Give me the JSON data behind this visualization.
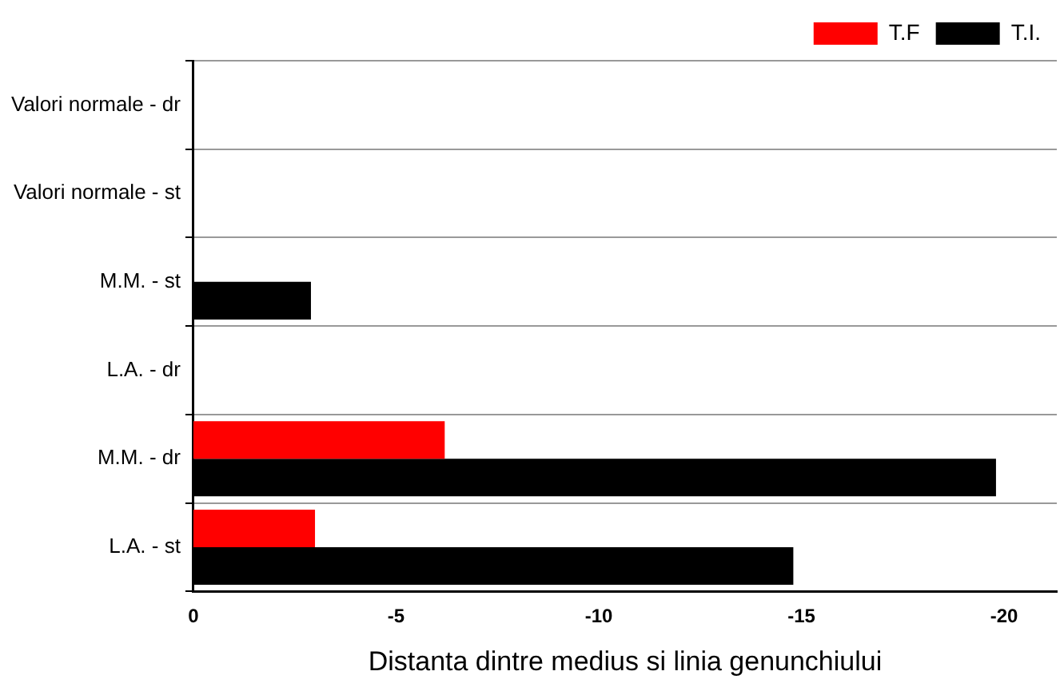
{
  "chart_data": {
    "type": "bar",
    "orientation": "horizontal",
    "xlabel": "Distanta dintre medius si linia genunchiului",
    "categories": [
      "Valori normale - dr",
      "Valori normale - st",
      "M.M. - st",
      "L.A. - dr",
      "M.M. - dr",
      "L.A. - st"
    ],
    "series": [
      {
        "name": "T.F",
        "color": "#ff0000",
        "values": [
          null,
          null,
          null,
          null,
          -6.2,
          -3.0
        ]
      },
      {
        "name": "T.I.",
        "color": "#000000",
        "values": [
          null,
          null,
          -2.9,
          null,
          -19.8,
          -14.8
        ]
      }
    ],
    "xlim": [
      0,
      -21.3
    ],
    "xticks": [
      0,
      -5,
      -10,
      -15,
      -20
    ],
    "grid": "y",
    "legend": "top right"
  }
}
